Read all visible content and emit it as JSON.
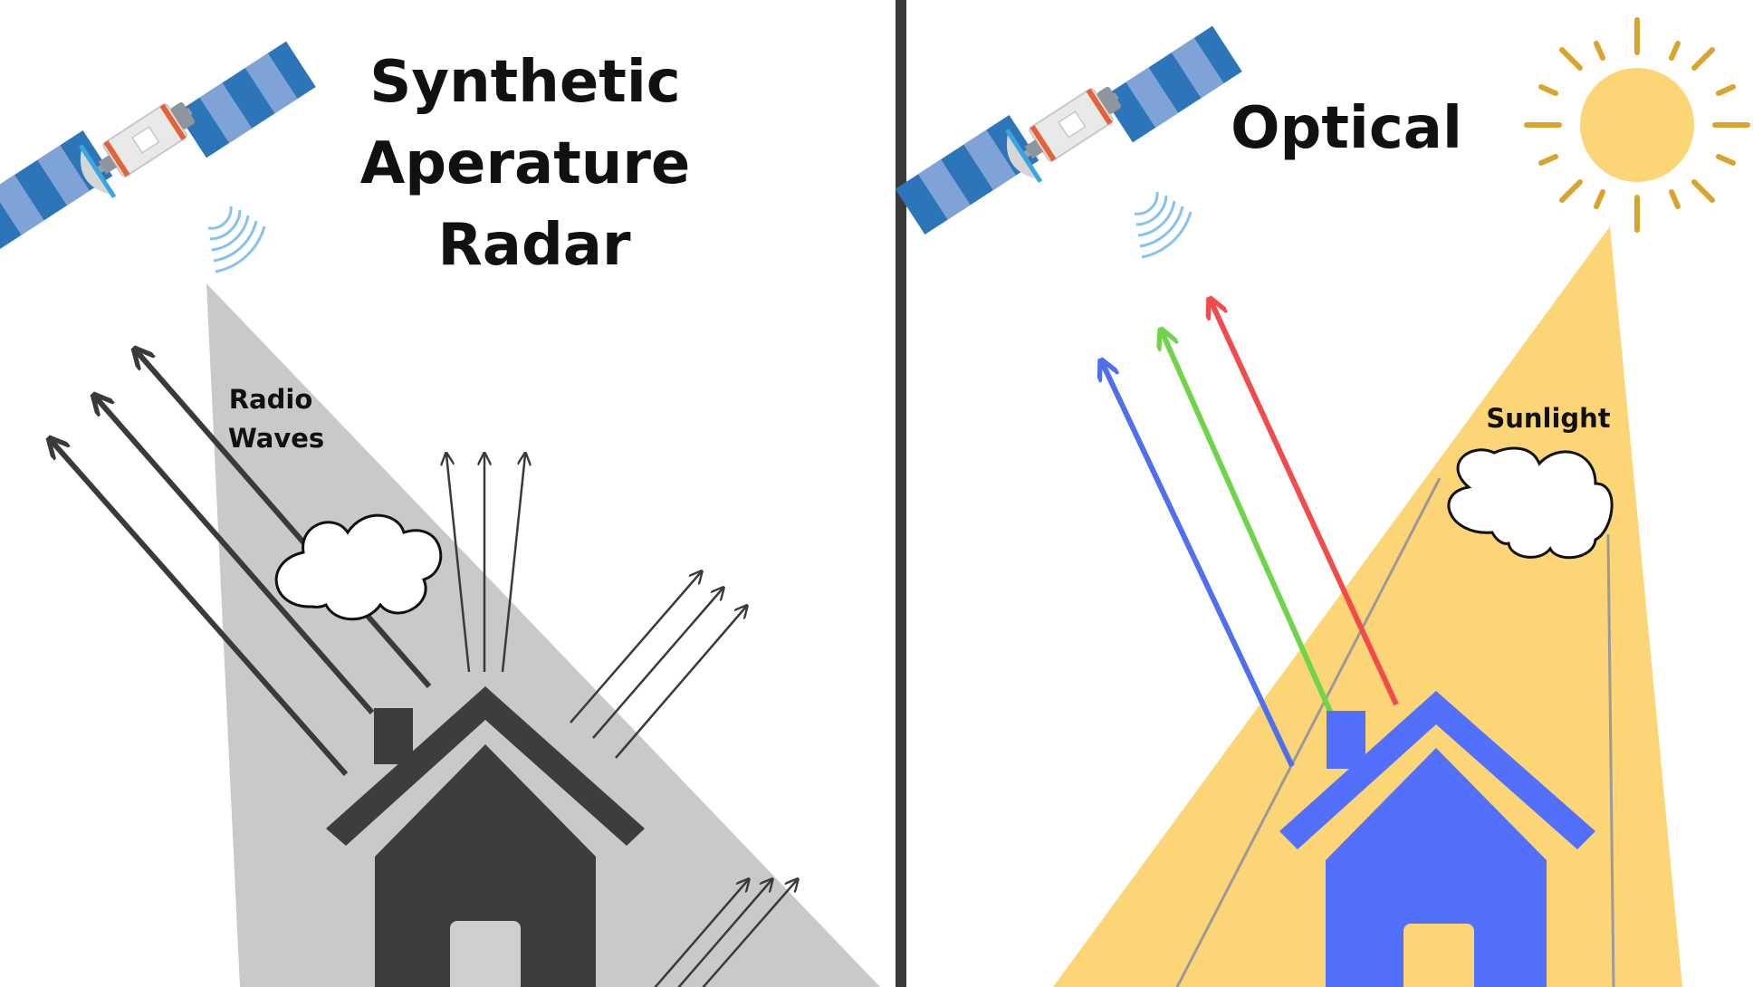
{
  "sar_panel": {
    "title_lines": [
      "Synthetic",
      "Aperature",
      "Radar"
    ],
    "beam_label_lines": [
      "Radio",
      "Waves"
    ]
  },
  "optical_panel": {
    "title": "Optical",
    "beam_label": "Sunlight"
  },
  "colors": {
    "divider": "#3a3a3a",
    "sar_beam": "#c9c9c9",
    "sar_house": "#3d3d3d",
    "house_door": "#cfcfcf",
    "optical_beam": "#fcd576",
    "optical_house": "#5270fb",
    "optical_door": "#fcd576",
    "sun": "#fcd576",
    "sun_rays": "#d9a42e",
    "arrow_dark": "#3a3a3a",
    "arrow_blue": "#4f6ef0",
    "arrow_green": "#6fd44a",
    "arrow_red": "#f24b4b",
    "satellite_panel_dark": "#2c75b8",
    "satellite_panel_light": "#7fa3d6",
    "signal_waves": "#86c3ea"
  }
}
